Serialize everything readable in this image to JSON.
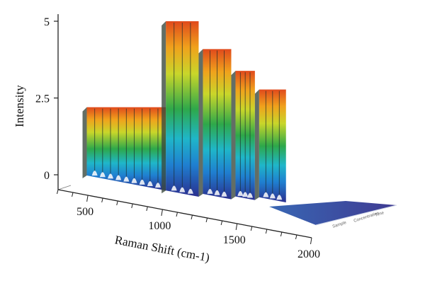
{
  "chart_data": {
    "type": "3d-waterfall",
    "ylabel": "Intensity",
    "xlabel": "Raman Shift (cm-1)",
    "y_ticks": [
      "0",
      "2.5",
      "5"
    ],
    "x_ticks": [
      "500",
      "1000",
      "1500",
      "2000"
    ],
    "ylim": [
      -0.5,
      5.2
    ],
    "xlim": [
      300,
      2000
    ],
    "grid": false,
    "legend": "none",
    "depth_axis_labels": [
      "Sample",
      "Concentration",
      "Time"
    ],
    "blocks": [
      {
        "x_start": 350,
        "x_end": 880,
        "height": 2.2,
        "depth": 0
      },
      {
        "x_start": 880,
        "x_end": 1100,
        "height": 5.0,
        "depth": 0
      },
      {
        "x_start": 1100,
        "x_end": 1290,
        "height": 4.0,
        "depth": 1
      },
      {
        "x_start": 1290,
        "x_end": 1420,
        "height": 3.2,
        "depth": 2
      },
      {
        "x_start": 1420,
        "x_end": 1600,
        "height": 2.5,
        "depth": 3
      }
    ],
    "colors": {
      "low": "#2a2f8f",
      "mid_low": "#1fa7c9",
      "mid": "#2ea84a",
      "mid_high": "#e6e62a",
      "high": "#e04a1c"
    }
  }
}
